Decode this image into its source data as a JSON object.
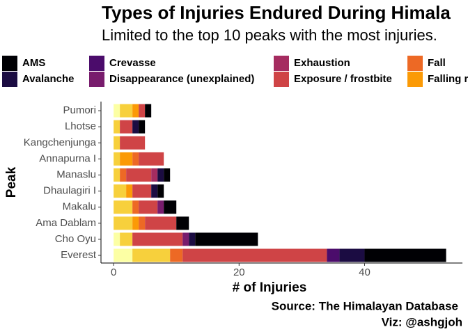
{
  "chart_data": {
    "type": "stacked-barh",
    "title": "Types of Injuries Endured During Himala",
    "subtitle": "Limited to the top 10 peaks with the most injuries.",
    "xlabel": "# of Injuries",
    "ylabel": "Peak",
    "caption": [
      "Source: The Himalayan Database",
      "Viz: @ashgjoh"
    ],
    "categories": [
      "Everest",
      "Cho Oyu",
      "Ama Dablam",
      "Makalu",
      "Dhaulagiri I",
      "Manaslu",
      "Annapurna I",
      "Kangchenjunga",
      "Lhotse",
      "Pumori"
    ],
    "series": [
      {
        "name": "AMS",
        "color": "#000004",
        "values": [
          13,
          10,
          2,
          2,
          1,
          1,
          0,
          0,
          1,
          1
        ]
      },
      {
        "name": "Avalanche",
        "color": "#1b0c42",
        "values": [
          4,
          1,
          0,
          0,
          1,
          1,
          0,
          0,
          1,
          0
        ]
      },
      {
        "name": "Crevasse",
        "color": "#4b0c6b",
        "values": [
          2,
          0,
          0,
          0,
          0,
          0,
          0,
          0,
          0,
          0
        ]
      },
      {
        "name": "Disappearance (unexplained)",
        "color": "#781c6d",
        "values": [
          0,
          1,
          0,
          1,
          0,
          0,
          0,
          0,
          0,
          0
        ]
      },
      {
        "name": "Exhaustion",
        "color": "#a52c60",
        "values": [
          0,
          0,
          0,
          0,
          0,
          1,
          0,
          0,
          0,
          0
        ]
      },
      {
        "name": "Exposure / frostbite",
        "color": "#cf4446",
        "values": [
          23,
          8,
          5,
          3,
          3,
          4,
          4,
          4,
          2,
          1
        ]
      },
      {
        "name": "Fall",
        "color": "#ed6925",
        "values": [
          2,
          0,
          1,
          1,
          0,
          1,
          1,
          0,
          0,
          0
        ]
      },
      {
        "name": "Falling r",
        "color": "#fb9a06",
        "values": [
          0,
          0,
          1,
          0,
          1,
          0,
          2,
          0,
          0,
          1
        ]
      },
      {
        "color": "#f7d03c",
        "values": [
          6,
          2,
          3,
          3,
          2,
          1,
          1,
          1,
          1,
          2
        ]
      },
      {
        "color": "#fcffa4",
        "values": [
          3,
          1,
          0,
          0,
          0,
          0,
          0,
          0,
          0,
          1
        ]
      }
    ],
    "xlim": [
      -1.9,
      55.6
    ],
    "xticks": [
      0,
      20,
      40
    ],
    "grid": false
  }
}
